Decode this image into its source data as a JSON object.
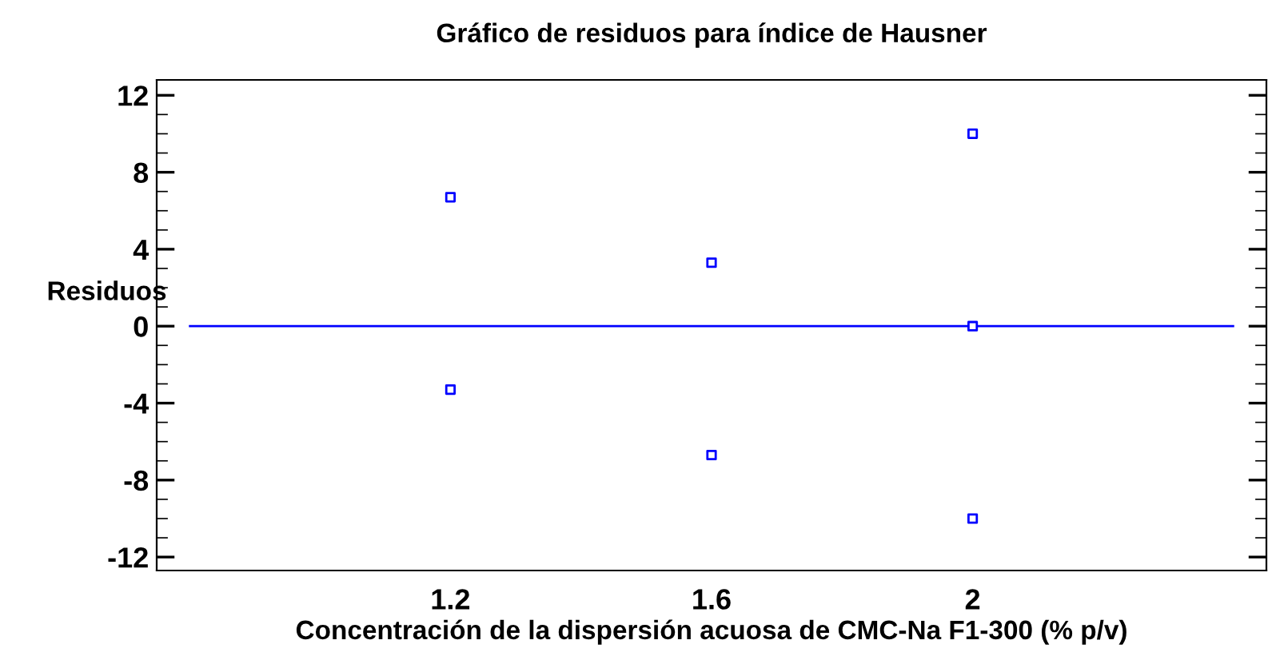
{
  "chart_data": {
    "type": "scatter",
    "title": "Gráfico de residuos para índice de Hausner",
    "xlabel": "Concentración de la dispersión acuosa de CMC-Na F1-300 (% p/v)",
    "ylabel": "Residuos",
    "x": [
      1.2,
      1.2,
      1.6,
      1.6,
      2.0,
      2.0,
      2.0
    ],
    "values": [
      6.7,
      -3.3,
      3.3,
      -6.7,
      10,
      0,
      -10
    ],
    "color": "#0000ff",
    "marker": "square",
    "xlim": [
      0.75,
      2.45
    ],
    "xticks": [
      1.2,
      1.6,
      2
    ],
    "ylim": [
      -12.7,
      12.8
    ],
    "yticks": [
      -12,
      -8,
      -4,
      0,
      4,
      8,
      12
    ],
    "ref_lines": [
      {
        "axis": "y",
        "value": 0,
        "color": "#0000ff",
        "line_style": "solid"
      }
    ],
    "grid": false
  }
}
